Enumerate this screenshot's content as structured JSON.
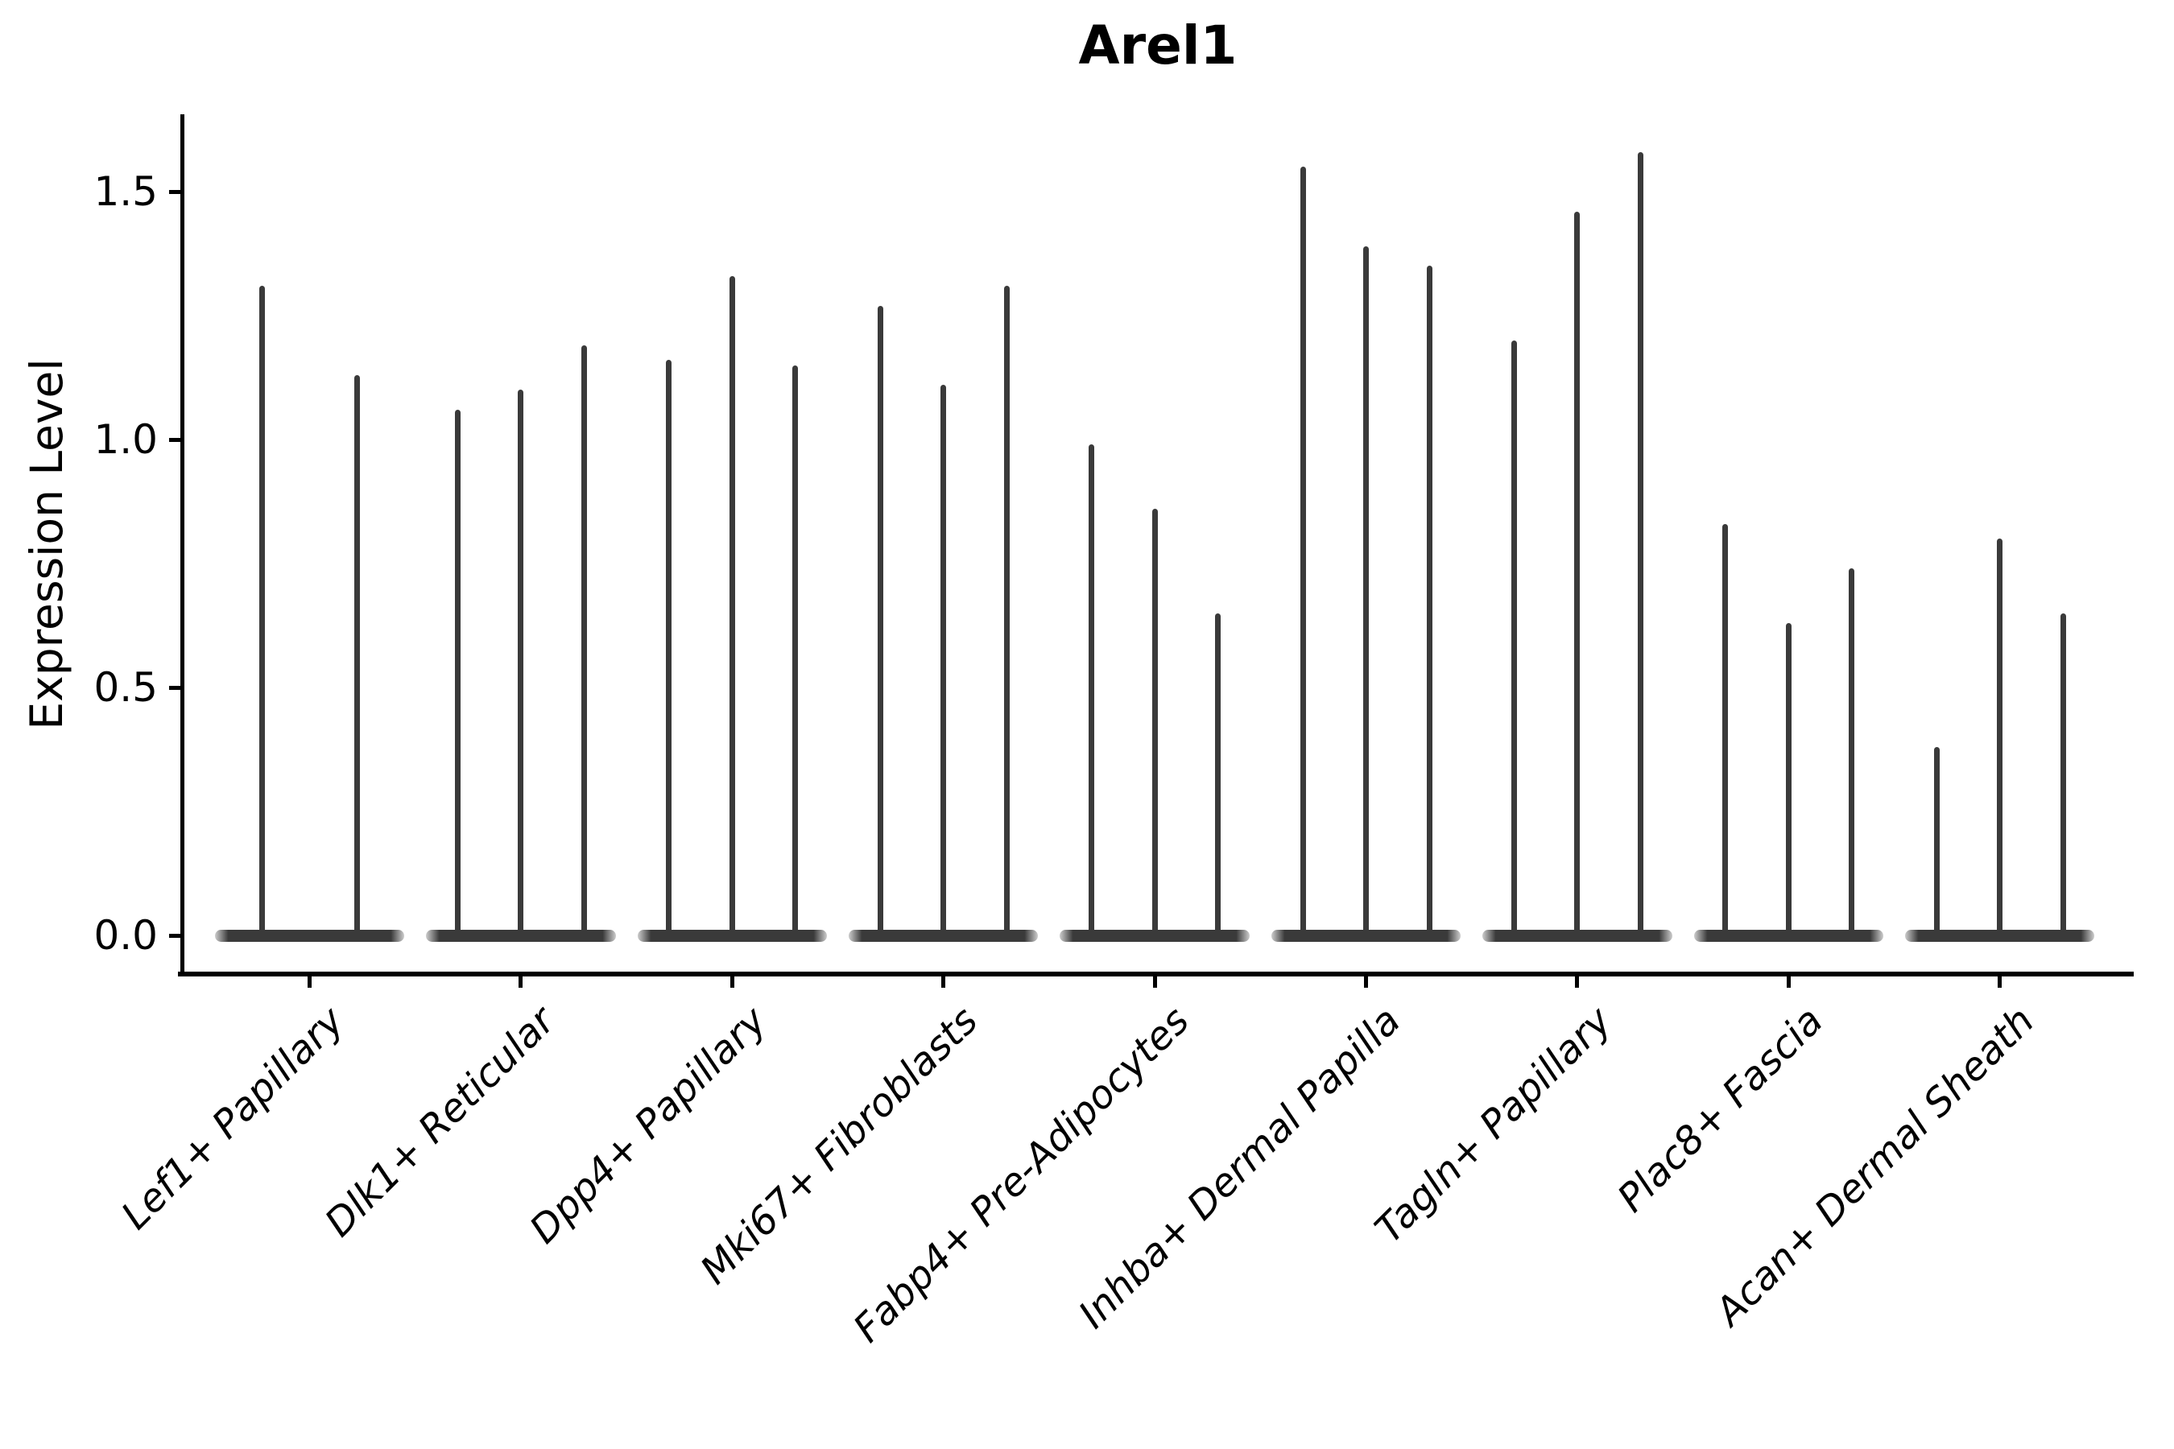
{
  "chart_data": {
    "type": "violin",
    "title": "Arel1",
    "xlabel": "",
    "ylabel": "Expression Level",
    "ytick_labels": [
      "0.0",
      "0.5",
      "1.0",
      "1.5"
    ],
    "yticks": [
      0.0,
      0.5,
      1.0,
      1.5
    ],
    "ylim": [
      -0.08,
      1.66
    ],
    "grid": false,
    "legend": "none",
    "style": {
      "violin_color": "#3a3a3a",
      "axis_color": "#000000",
      "background_color": "#ffffff"
    },
    "groups": [
      {
        "label": "Lef1+ Papillary",
        "violin_max_values": [
          1.31,
          1.13
        ]
      },
      {
        "label": "Dlk1+ Reticular",
        "violin_max_values": [
          1.06,
          1.1,
          1.19
        ]
      },
      {
        "label": "Dpp4+ Papillary",
        "violin_max_values": [
          1.16,
          1.33,
          1.15
        ]
      },
      {
        "label": "Mki67+ Fibroblasts",
        "violin_max_values": [
          1.27,
          1.11,
          1.31
        ]
      },
      {
        "label": "Fabp4+ Pre-Adipocytes",
        "violin_max_values": [
          0.99,
          0.86,
          0.65
        ]
      },
      {
        "label": "Inhba+ Dermal Papilla",
        "violin_max_values": [
          1.55,
          1.39,
          1.35
        ]
      },
      {
        "label": "Tagln+ Papillary",
        "violin_max_values": [
          1.2,
          1.46,
          1.58
        ]
      },
      {
        "label": "Plac8+ Fascia",
        "violin_max_values": [
          0.83,
          0.63,
          0.74
        ]
      },
      {
        "label": "Acan+ Dermal Sheath",
        "violin_max_values": [
          0.38,
          0.8,
          0.65
        ]
      }
    ]
  }
}
